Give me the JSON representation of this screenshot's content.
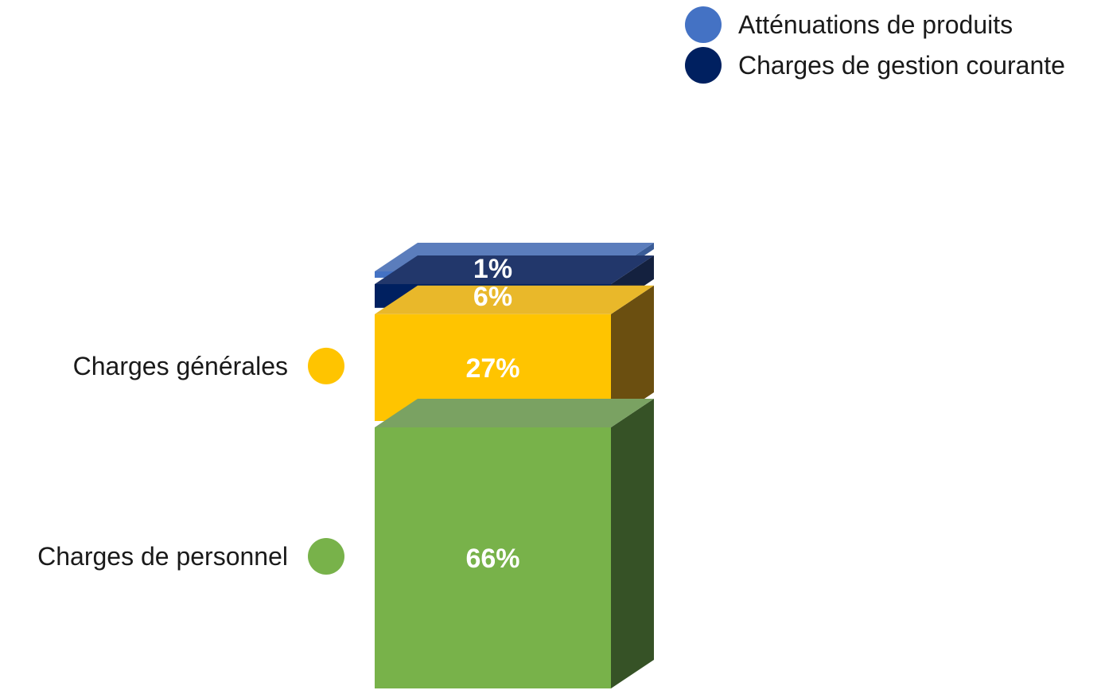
{
  "chart_data": {
    "type": "bar",
    "stacked": true,
    "three_d": true,
    "series": [
      {
        "name": "Charges de personnel",
        "value": 66,
        "label": "66%",
        "color": "#78B24A",
        "side_color": "#365226",
        "top_color": "#7AA262"
      },
      {
        "name": "Charges générales",
        "value": 27,
        "label": "27%",
        "color": "#FFC400",
        "side_color": "#6B4F10",
        "top_color": "#E9B82A"
      },
      {
        "name": "Charges de gestion courante",
        "value": 6,
        "label": "6%",
        "color": "#002060",
        "side_color": "#14213F",
        "top_color": "#22376B"
      },
      {
        "name": "Atténuations de produits",
        "value": 1,
        "label": "1%",
        "color": "#4472C4",
        "side_color": "#3A5C97",
        "top_color": "#5B7DBC"
      }
    ],
    "legend": {
      "top_right": [
        "Atténuations de produits",
        "Charges de gestion courante"
      ],
      "left": [
        "Charges générales",
        "Charges de personnel"
      ]
    }
  }
}
